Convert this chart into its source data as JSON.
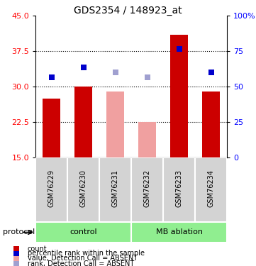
{
  "title": "GDS2354 / 148923_at",
  "samples": [
    "GSM76229",
    "GSM76230",
    "GSM76231",
    "GSM76232",
    "GSM76233",
    "GSM76234"
  ],
  "bar_values": [
    27.5,
    30.0,
    29.0,
    22.5,
    41.0,
    29.0
  ],
  "bar_absent": [
    false,
    false,
    true,
    true,
    false,
    false
  ],
  "rank_values": [
    32.0,
    34.0,
    33.0,
    32.0,
    38.0,
    33.0
  ],
  "rank_absent": [
    false,
    false,
    true,
    true,
    false,
    false
  ],
  "ylim_left": [
    15,
    45
  ],
  "ylim_right": [
    0,
    100
  ],
  "yticks_left": [
    15,
    22.5,
    30,
    37.5,
    45
  ],
  "yticks_right": [
    0,
    25,
    50,
    75,
    100
  ],
  "bar_color_present": "#cc0000",
  "bar_color_absent": "#f0a0a0",
  "rank_color_present": "#0000cc",
  "rank_color_absent": "#a0a0d0",
  "group_labels": [
    "control",
    "MB ablation"
  ],
  "group_ranges": [
    [
      0,
      3
    ],
    [
      3,
      6
    ]
  ],
  "group_color": "#90ee90",
  "protocol_label": "protocol",
  "dotted_lines": [
    22.5,
    30.0,
    37.5
  ],
  "bar_width": 0.55,
  "rank_marker_size": 6,
  "legend_items": [
    [
      "#cc0000",
      "count"
    ],
    [
      "#0000cc",
      "percentile rank within the sample"
    ],
    [
      "#f0a0a0",
      "value, Detection Call = ABSENT"
    ],
    [
      "#a0a0d0",
      "rank, Detection Call = ABSENT"
    ]
  ]
}
